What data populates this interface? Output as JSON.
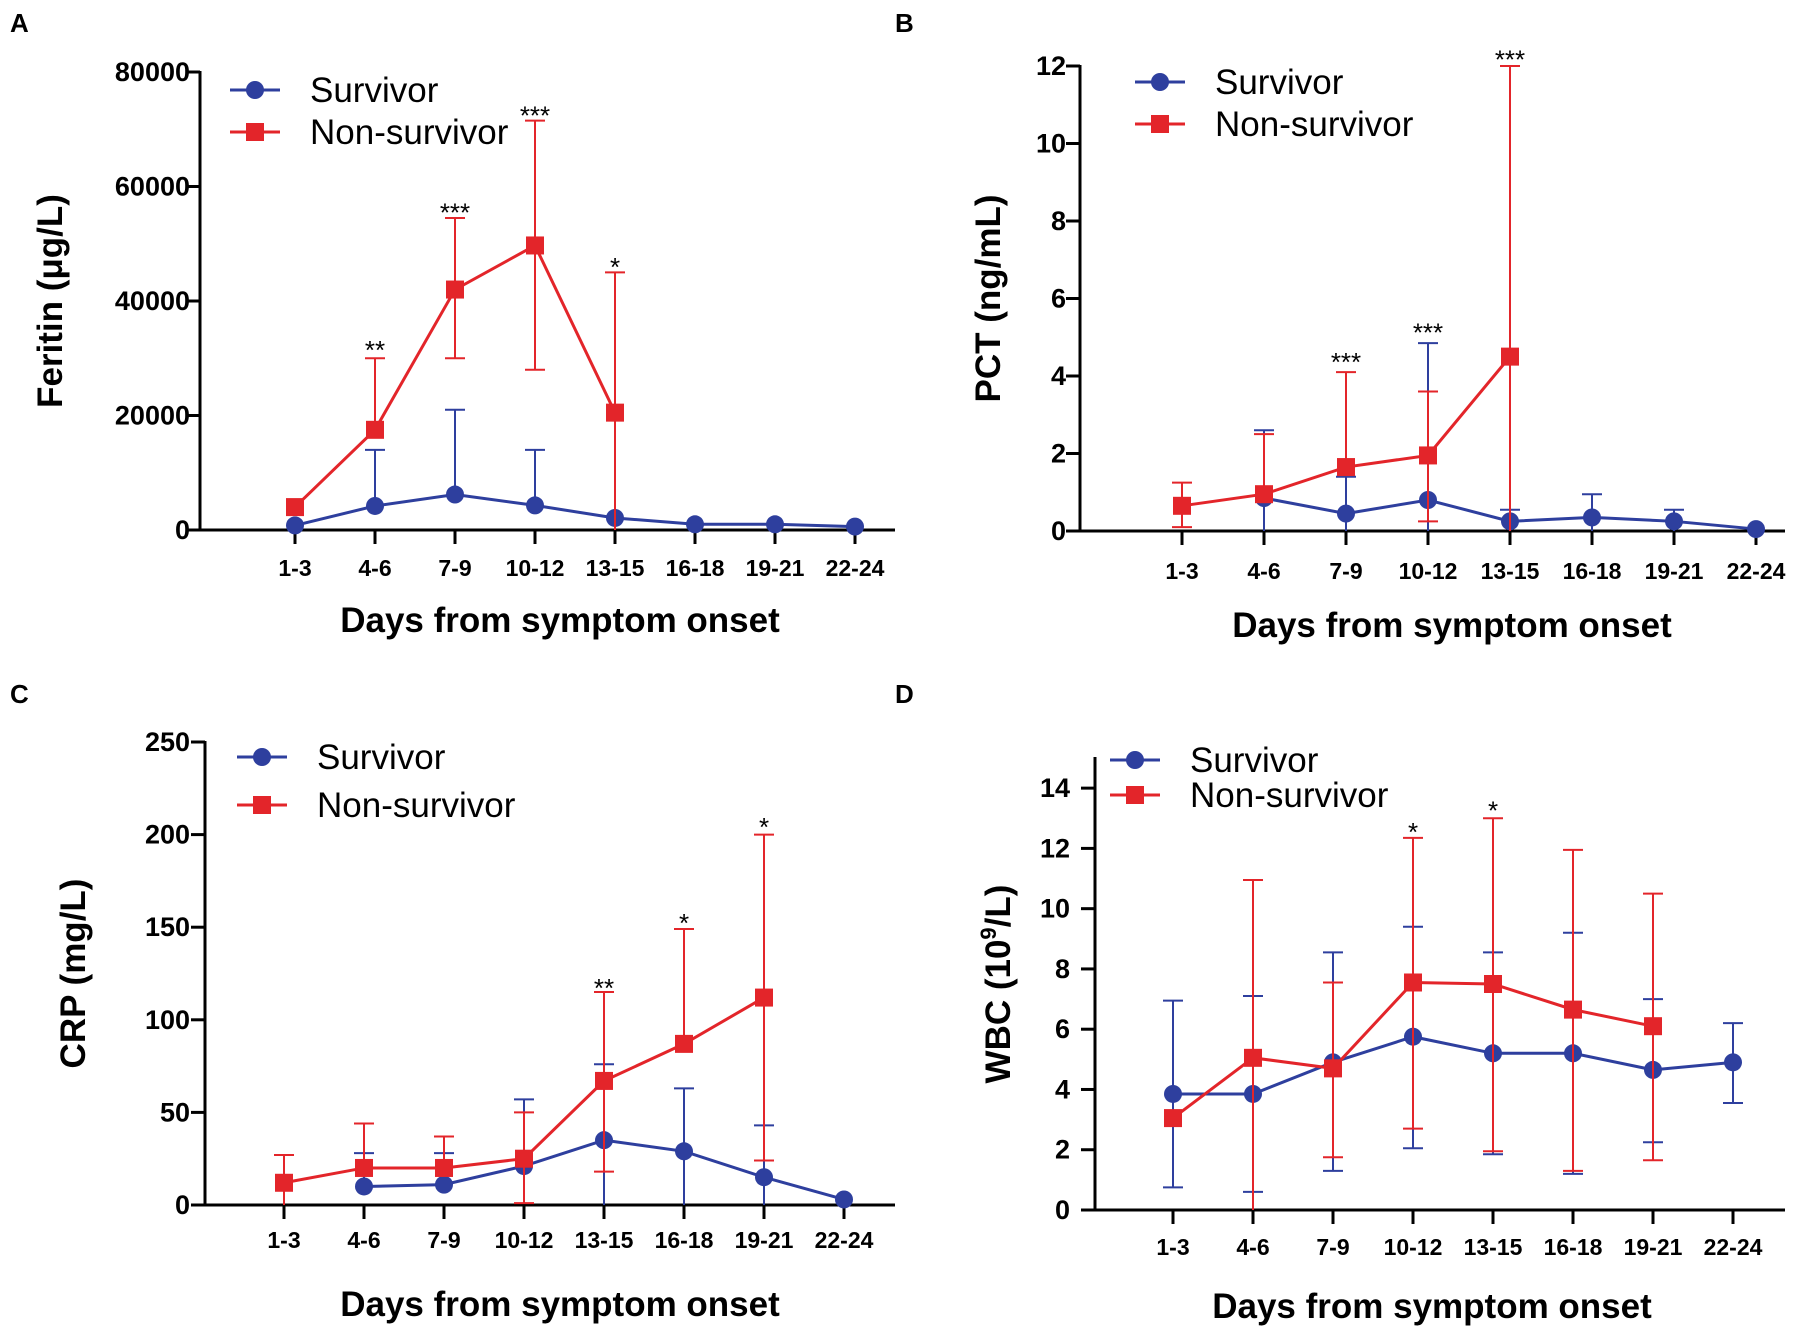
{
  "colors": {
    "survivor": "#2e3f9e",
    "non_survivor": "#e3252a",
    "axis": "#000000"
  },
  "legend": {
    "survivor": "Survivor",
    "non_survivor": "Non-survivor"
  },
  "chart_data": [
    {
      "panel": "A",
      "type": "line",
      "xlabel": "Days from symptom onset",
      "ylabel": "Feritin (μg/L)",
      "ylim": [
        0,
        80000
      ],
      "yticks": [
        0,
        20000,
        40000,
        60000,
        80000
      ],
      "categories": [
        "1-3",
        "4-6",
        "7-9",
        "10-12",
        "13-15",
        "16-18",
        "19-21",
        "22-24"
      ],
      "series": [
        {
          "name": "Survivor",
          "values": [
            800,
            4200,
            6200,
            4300,
            2100,
            1000,
            1000,
            600
          ],
          "err_upper": [
            null,
            14000,
            21000,
            14000,
            null,
            null,
            null,
            null
          ]
        },
        {
          "name": "Non-survivor",
          "values": [
            4000,
            17500,
            42000,
            49700,
            20500,
            null,
            null,
            null
          ],
          "err_upper": [
            null,
            30000,
            54500,
            71500,
            45000,
            null,
            null,
            null
          ],
          "err_lower": [
            null,
            null,
            30000,
            28000,
            0,
            null,
            null,
            null
          ]
        }
      ],
      "annotations": [
        {
          "category": "4-6",
          "text": "**",
          "y": 33000
        },
        {
          "category": "7-9",
          "text": "***",
          "y": 57000
        },
        {
          "category": "10-12",
          "text": "***",
          "y": 74000
        },
        {
          "category": "13-15",
          "text": "*",
          "y": 47500
        }
      ]
    },
    {
      "panel": "B",
      "type": "line",
      "xlabel": "Days from symptom onset",
      "ylabel": "PCT (ng/mL)",
      "ylim": [
        0,
        12
      ],
      "yticks": [
        0,
        2,
        4,
        6,
        8,
        10,
        12
      ],
      "categories": [
        "1-3",
        "4-6",
        "7-9",
        "10-12",
        "13-15",
        "16-18",
        "19-21",
        "22-24"
      ],
      "series": [
        {
          "name": "Survivor",
          "values": [
            null,
            0.85,
            0.45,
            0.8,
            0.25,
            0.35,
            0.25,
            0.05
          ],
          "err_upper": [
            null,
            2.6,
            1.4,
            4.85,
            0.55,
            0.95,
            0.55,
            null
          ],
          "err_lower": [
            null,
            0,
            0,
            0,
            0,
            0,
            0,
            null
          ]
        },
        {
          "name": "Non-survivor",
          "values": [
            0.65,
            0.95,
            1.65,
            1.95,
            4.5,
            null,
            null,
            null
          ],
          "err_upper": [
            1.25,
            2.5,
            4.1,
            3.6,
            12.0,
            null,
            null,
            null
          ],
          "err_lower": [
            0.1,
            null,
            null,
            0.25,
            0,
            null,
            null,
            null
          ]
        }
      ],
      "annotations": [
        {
          "category": "7-9",
          "text": "***",
          "y": 4.6
        },
        {
          "category": "10-12",
          "text": "***",
          "y": 5.35
        },
        {
          "category": "13-15",
          "text": "***",
          "y": 12.4
        }
      ]
    },
    {
      "panel": "C",
      "type": "line",
      "xlabel": "Days from symptom onset",
      "ylabel": "CRP (mg/L)",
      "ylim": [
        0,
        250
      ],
      "yticks": [
        0,
        50,
        100,
        150,
        200,
        250
      ],
      "categories": [
        "1-3",
        "4-6",
        "7-9",
        "10-12",
        "13-15",
        "16-18",
        "19-21",
        "22-24"
      ],
      "series": [
        {
          "name": "Survivor",
          "values": [
            null,
            10,
            11,
            21,
            35,
            29,
            15,
            3
          ],
          "err_upper": [
            null,
            28,
            28,
            57,
            76,
            63,
            43,
            null
          ],
          "err_lower": [
            null,
            null,
            null,
            null,
            0,
            0,
            0,
            null
          ]
        },
        {
          "name": "Non-survivor",
          "values": [
            12,
            20,
            20,
            25,
            67,
            87,
            112,
            null
          ],
          "err_upper": [
            27,
            44,
            37,
            50,
            115,
            149,
            200,
            null
          ],
          "err_lower": [
            0,
            null,
            null,
            1,
            18,
            null,
            24,
            null
          ]
        }
      ],
      "annotations": [
        {
          "category": "13-15",
          "text": "**",
          "y": 122
        },
        {
          "category": "16-18",
          "text": "*",
          "y": 157
        },
        {
          "category": "19-21",
          "text": "*",
          "y": 209
        }
      ]
    },
    {
      "panel": "D",
      "type": "line",
      "xlabel": "Days from symptom onset",
      "ylabel": "WBC (10^9/L)",
      "ylabel_parts": {
        "prefix": "WBC (10",
        "sup": "9",
        "suffix": "/L)"
      },
      "ylim": [
        0,
        15
      ],
      "yticks": [
        0,
        2,
        4,
        6,
        8,
        10,
        12,
        14
      ],
      "categories": [
        "1-3",
        "4-6",
        "7-9",
        "10-12",
        "13-15",
        "16-18",
        "19-21",
        "22-24"
      ],
      "series": [
        {
          "name": "Survivor",
          "values": [
            3.85,
            3.85,
            4.9,
            5.75,
            5.2,
            5.2,
            4.65,
            4.9
          ],
          "err_upper": [
            6.95,
            7.1,
            8.55,
            9.4,
            8.55,
            9.2,
            7.0,
            6.2
          ],
          "err_lower": [
            0.75,
            0.6,
            1.3,
            2.05,
            1.85,
            1.2,
            2.25,
            3.55
          ]
        },
        {
          "name": "Non-survivor",
          "values": [
            3.05,
            5.05,
            4.7,
            7.55,
            7.5,
            6.65,
            6.1,
            null
          ],
          "err_upper": [
            null,
            10.95,
            7.55,
            12.35,
            13.0,
            11.95,
            10.5,
            null
          ],
          "err_lower": [
            null,
            0,
            1.75,
            2.7,
            1.95,
            1.3,
            1.65,
            null
          ]
        }
      ],
      "annotations": [
        {
          "category": "10-12",
          "text": "*",
          "y": 12.85
        },
        {
          "category": "13-15",
          "text": "*",
          "y": 13.55
        }
      ]
    }
  ]
}
